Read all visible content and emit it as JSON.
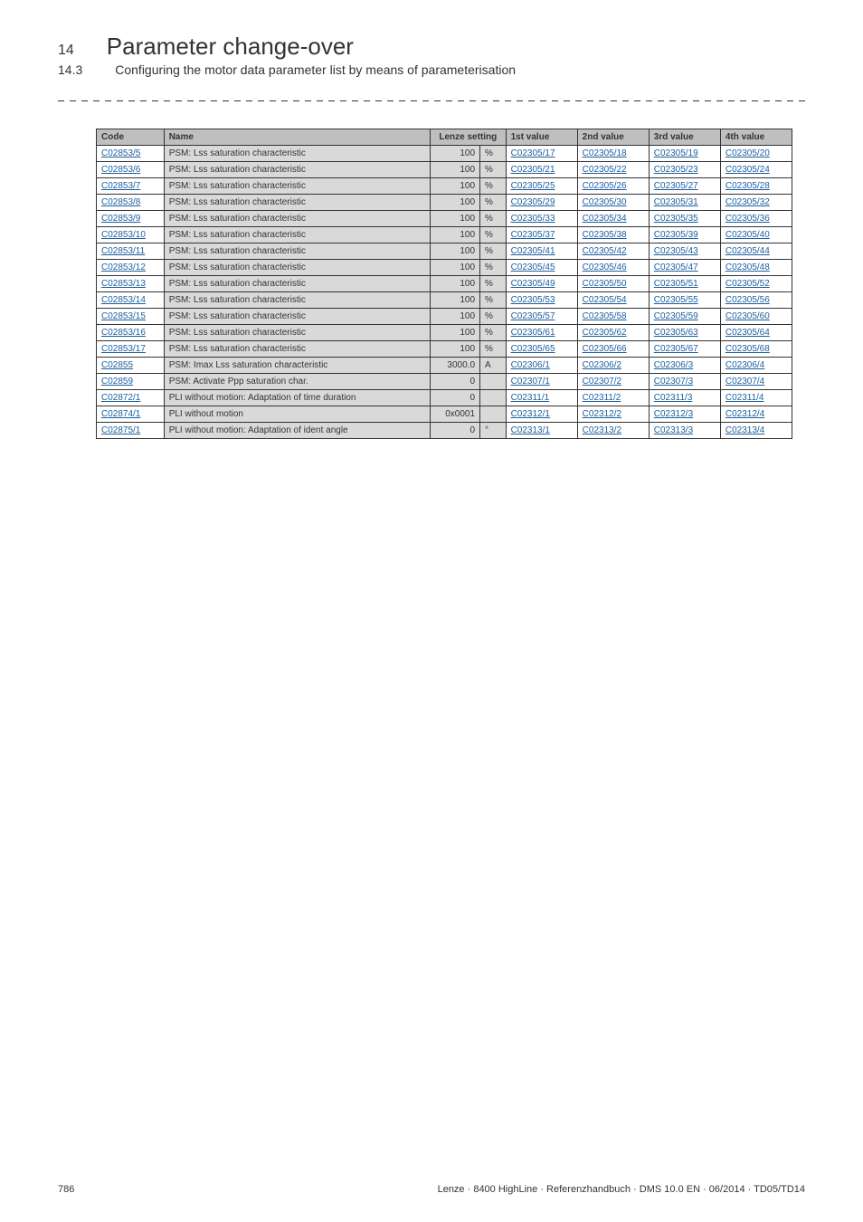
{
  "header": {
    "chapter_number": "14",
    "chapter_title": "Parameter change-over",
    "section_number": "14.3",
    "section_title": "Configuring the motor data parameter list by means of parameterisation"
  },
  "table": {
    "columns": {
      "code": "Code",
      "name": "Name",
      "lenze": "Lenze setting",
      "v1": "1st value",
      "v2": "2nd value",
      "v3": "3rd value",
      "v4": "4th value"
    },
    "rows": [
      {
        "code": "C02853/5",
        "name": "PSM: Lss saturation characteristic",
        "setting_val": "100",
        "setting_unit": "%",
        "v1": "C02305/17",
        "v2": "C02305/18",
        "v3": "C02305/19",
        "v4": "C02305/20"
      },
      {
        "code": "C02853/6",
        "name": "PSM: Lss saturation characteristic",
        "setting_val": "100",
        "setting_unit": "%",
        "v1": "C02305/21",
        "v2": "C02305/22",
        "v3": "C02305/23",
        "v4": "C02305/24"
      },
      {
        "code": "C02853/7",
        "name": "PSM: Lss saturation characteristic",
        "setting_val": "100",
        "setting_unit": "%",
        "v1": "C02305/25",
        "v2": "C02305/26",
        "v3": "C02305/27",
        "v4": "C02305/28"
      },
      {
        "code": "C02853/8",
        "name": "PSM: Lss saturation characteristic",
        "setting_val": "100",
        "setting_unit": "%",
        "v1": "C02305/29",
        "v2": "C02305/30",
        "v3": "C02305/31",
        "v4": "C02305/32"
      },
      {
        "code": "C02853/9",
        "name": "PSM: Lss saturation characteristic",
        "setting_val": "100",
        "setting_unit": "%",
        "v1": "C02305/33",
        "v2": "C02305/34",
        "v3": "C02305/35",
        "v4": "C02305/36"
      },
      {
        "code": "C02853/10",
        "name": "PSM: Lss saturation characteristic",
        "setting_val": "100",
        "setting_unit": "%",
        "v1": "C02305/37",
        "v2": "C02305/38",
        "v3": "C02305/39",
        "v4": "C02305/40"
      },
      {
        "code": "C02853/11",
        "name": "PSM: Lss saturation characteristic",
        "setting_val": "100",
        "setting_unit": "%",
        "v1": "C02305/41",
        "v2": "C02305/42",
        "v3": "C02305/43",
        "v4": "C02305/44"
      },
      {
        "code": "C02853/12",
        "name": "PSM: Lss saturation characteristic",
        "setting_val": "100",
        "setting_unit": "%",
        "v1": "C02305/45",
        "v2": "C02305/46",
        "v3": "C02305/47",
        "v4": "C02305/48"
      },
      {
        "code": "C02853/13",
        "name": "PSM: Lss saturation characteristic",
        "setting_val": "100",
        "setting_unit": "%",
        "v1": "C02305/49",
        "v2": "C02305/50",
        "v3": "C02305/51",
        "v4": "C02305/52"
      },
      {
        "code": "C02853/14",
        "name": "PSM: Lss saturation characteristic",
        "setting_val": "100",
        "setting_unit": "%",
        "v1": "C02305/53",
        "v2": "C02305/54",
        "v3": "C02305/55",
        "v4": "C02305/56"
      },
      {
        "code": "C02853/15",
        "name": "PSM: Lss saturation characteristic",
        "setting_val": "100",
        "setting_unit": "%",
        "v1": "C02305/57",
        "v2": "C02305/58",
        "v3": "C02305/59",
        "v4": "C02305/60"
      },
      {
        "code": "C02853/16",
        "name": "PSM: Lss saturation characteristic",
        "setting_val": "100",
        "setting_unit": "%",
        "v1": "C02305/61",
        "v2": "C02305/62",
        "v3": "C02305/63",
        "v4": "C02305/64"
      },
      {
        "code": "C02853/17",
        "name": "PSM: Lss saturation characteristic",
        "setting_val": "100",
        "setting_unit": "%",
        "v1": "C02305/65",
        "v2": "C02305/66",
        "v3": "C02305/67",
        "v4": "C02305/68"
      },
      {
        "code": "C02855",
        "name": "PSM: Imax Lss saturation characteristic",
        "setting_val": "3000.0",
        "setting_unit": "A",
        "v1": "C02306/1",
        "v2": "C02306/2",
        "v3": "C02306/3",
        "v4": "C02306/4"
      },
      {
        "code": "C02859",
        "name": "PSM: Activate Ppp saturation char.",
        "setting_val": "0",
        "setting_unit": "",
        "v1": "C02307/1",
        "v2": "C02307/2",
        "v3": "C02307/3",
        "v4": "C02307/4"
      },
      {
        "code": "C02872/1",
        "name": "PLI without motion: Adaptation of time duration",
        "setting_val": "0",
        "setting_unit": "",
        "v1": "C02311/1",
        "v2": "C02311/2",
        "v3": "C02311/3",
        "v4": "C02311/4"
      },
      {
        "code": "C02874/1",
        "name": "PLI without motion",
        "setting_val": "0x0001",
        "setting_unit": "",
        "v1": "C02312/1",
        "v2": "C02312/2",
        "v3": "C02312/3",
        "v4": "C02312/4"
      },
      {
        "code": "C02875/1",
        "name": "PLI without motion: Adaptation of ident angle",
        "setting_val": "0",
        "setting_unit": "°",
        "v1": "C02313/1",
        "v2": "C02313/2",
        "v3": "C02313/3",
        "v4": "C02313/4"
      }
    ]
  },
  "footer": {
    "page_number": "786",
    "right_text": "Lenze · 8400 HighLine · Referenzhandbuch · DMS 10.0 EN · 06/2014 · TD05/TD14"
  }
}
